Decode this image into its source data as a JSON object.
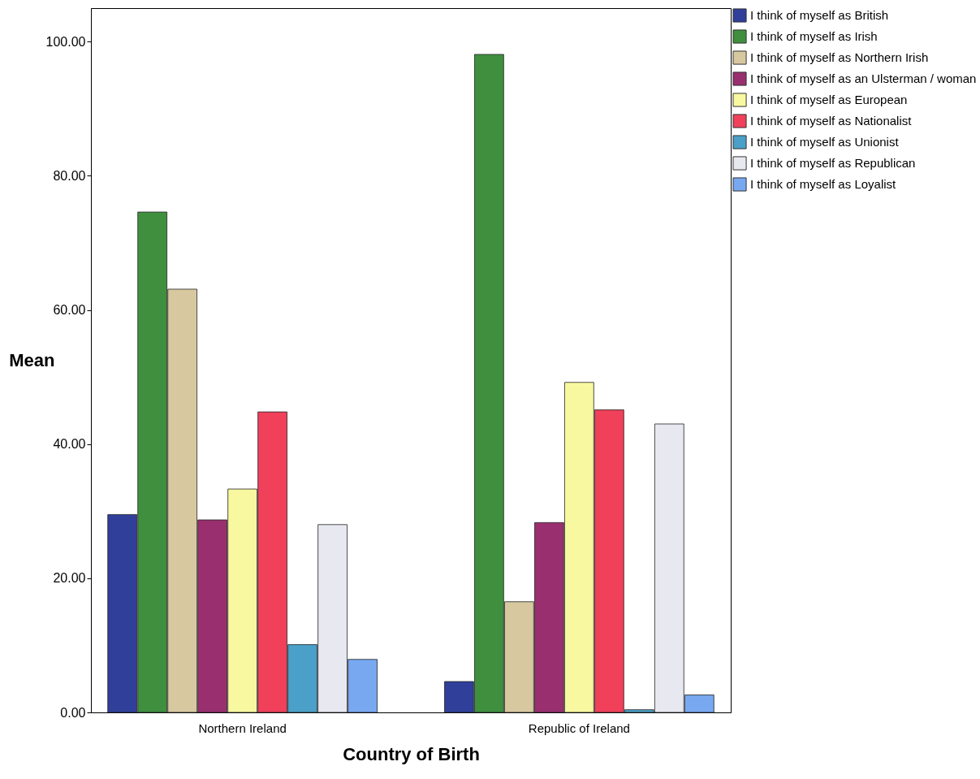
{
  "chart_data": {
    "type": "bar",
    "xlabel": "Country of Birth",
    "ylabel": "Mean",
    "categories": [
      "Northern Ireland",
      "Republic of Ireland"
    ],
    "series": [
      {
        "name": "I think of myself as British",
        "color": "#2f3f9a",
        "values": [
          29.5,
          4.6
        ]
      },
      {
        "name": "I think of myself as Irish",
        "color": "#3f8f3f",
        "values": [
          74.6,
          98.1
        ]
      },
      {
        "name": "I think of myself as Northern Irish",
        "color": "#d8c8a0",
        "values": [
          63.1,
          16.5
        ]
      },
      {
        "name": "I think of myself as an Ulsterman / woman",
        "color": "#9a2f6f",
        "values": [
          28.7,
          28.3
        ]
      },
      {
        "name": "I think of myself as European",
        "color": "#f8f8a0",
        "values": [
          33.3,
          49.2
        ]
      },
      {
        "name": "I think of myself as Nationalist",
        "color": "#f0405a",
        "values": [
          44.8,
          45.1
        ]
      },
      {
        "name": "I think of myself as Unionist",
        "color": "#4aa0c8",
        "values": [
          10.1,
          0.4
        ]
      },
      {
        "name": "I think of myself as Republican",
        "color": "#e8e8f0",
        "values": [
          28.0,
          43.0
        ]
      },
      {
        "name": "I think of myself as Loyalist",
        "color": "#78a8f0",
        "values": [
          7.9,
          2.6
        ]
      }
    ],
    "ylim": [
      0,
      105
    ],
    "yticks": [
      {
        "value": 0,
        "label": "0.00"
      },
      {
        "value": 20,
        "label": "20.00"
      },
      {
        "value": 40,
        "label": "40.00"
      },
      {
        "value": 60,
        "label": "60.00"
      },
      {
        "value": 80,
        "label": "80.00"
      },
      {
        "value": 100,
        "label": "100.00"
      }
    ],
    "grid": false,
    "legend": "top right"
  }
}
